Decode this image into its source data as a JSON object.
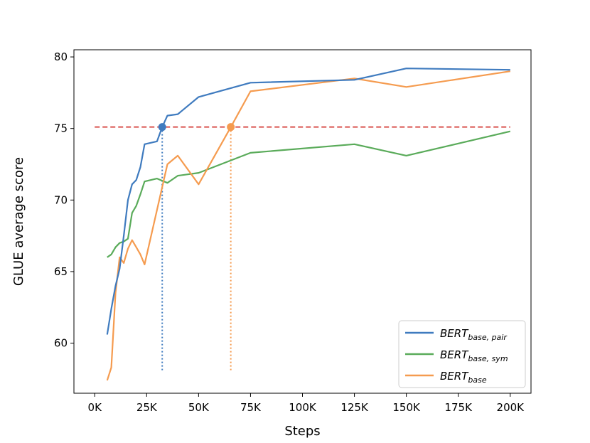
{
  "chart_data": {
    "type": "line",
    "xlabel": "Steps",
    "ylabel": "GLUE average score",
    "xlim": [
      -10000,
      210000
    ],
    "ylim": [
      56.5,
      80.5
    ],
    "xticks": [
      0,
      25000,
      50000,
      75000,
      100000,
      125000,
      150000,
      175000,
      200000
    ],
    "xtick_labels": [
      "0K",
      "25K",
      "50K",
      "75K",
      "100K",
      "125K",
      "150K",
      "175K",
      "200K"
    ],
    "yticks": [
      60,
      65,
      70,
      75,
      80
    ],
    "ytick_labels": [
      "60",
      "65",
      "70",
      "75",
      "80"
    ],
    "legend_position": "lower-right",
    "series": [
      {
        "name": "BERT",
        "name_sub": "base, pair",
        "color": "#3f7bbf",
        "x": [
          6000,
          8000,
          10000,
          12000,
          14000,
          16000,
          18000,
          20000,
          22000,
          24000,
          30000,
          32500,
          35000,
          40000,
          50000,
          75000,
          125000,
          150000,
          200000
        ],
        "y": [
          60.6,
          62.4,
          64.0,
          65.2,
          67.5,
          70.0,
          71.1,
          71.4,
          72.3,
          73.9,
          74.1,
          75.1,
          75.9,
          76.0,
          77.2,
          78.2,
          78.4,
          79.2,
          79.1
        ]
      },
      {
        "name": "BERT",
        "name_sub": "base, sym",
        "color": "#5aab5a",
        "x": [
          6000,
          8000,
          10000,
          12000,
          14000,
          16000,
          18000,
          20000,
          22000,
          24000,
          30000,
          35000,
          40000,
          50000,
          75000,
          125000,
          150000,
          200000
        ],
        "y": [
          66.0,
          66.2,
          66.7,
          67.0,
          67.1,
          67.3,
          69.1,
          69.6,
          70.4,
          71.3,
          71.5,
          71.2,
          71.7,
          71.9,
          73.3,
          73.9,
          73.1,
          74.8
        ]
      },
      {
        "name": "BERT",
        "name_sub": "base",
        "color": "#f59b4f",
        "x": [
          6000,
          8000,
          10000,
          12000,
          14000,
          16000,
          18000,
          20000,
          22000,
          24000,
          35000,
          40000,
          50000,
          65500,
          75000,
          125000,
          150000,
          200000
        ],
        "y": [
          57.4,
          58.3,
          63.5,
          66.0,
          65.6,
          66.6,
          67.2,
          66.7,
          66.2,
          65.5,
          72.5,
          73.1,
          71.1,
          75.1,
          77.6,
          78.5,
          77.9,
          79.0
        ]
      }
    ],
    "reference_line": {
      "y": 75.1,
      "x_range": [
        0,
        200000
      ],
      "color": "#d9534f",
      "style": "dashed"
    },
    "markers": [
      {
        "series": 0,
        "x": 32500,
        "y": 75.1,
        "color": "#3f7bbf"
      },
      {
        "series": 2,
        "x": 65500,
        "y": 75.1,
        "color": "#f59b4f"
      }
    ],
    "drop_lines": [
      {
        "x": 32500,
        "y_from": 75.1,
        "y_to": 58.0,
        "color": "#3f7bbf"
      },
      {
        "x": 65500,
        "y_from": 75.1,
        "y_to": 58.0,
        "color": "#f59b4f"
      }
    ]
  }
}
